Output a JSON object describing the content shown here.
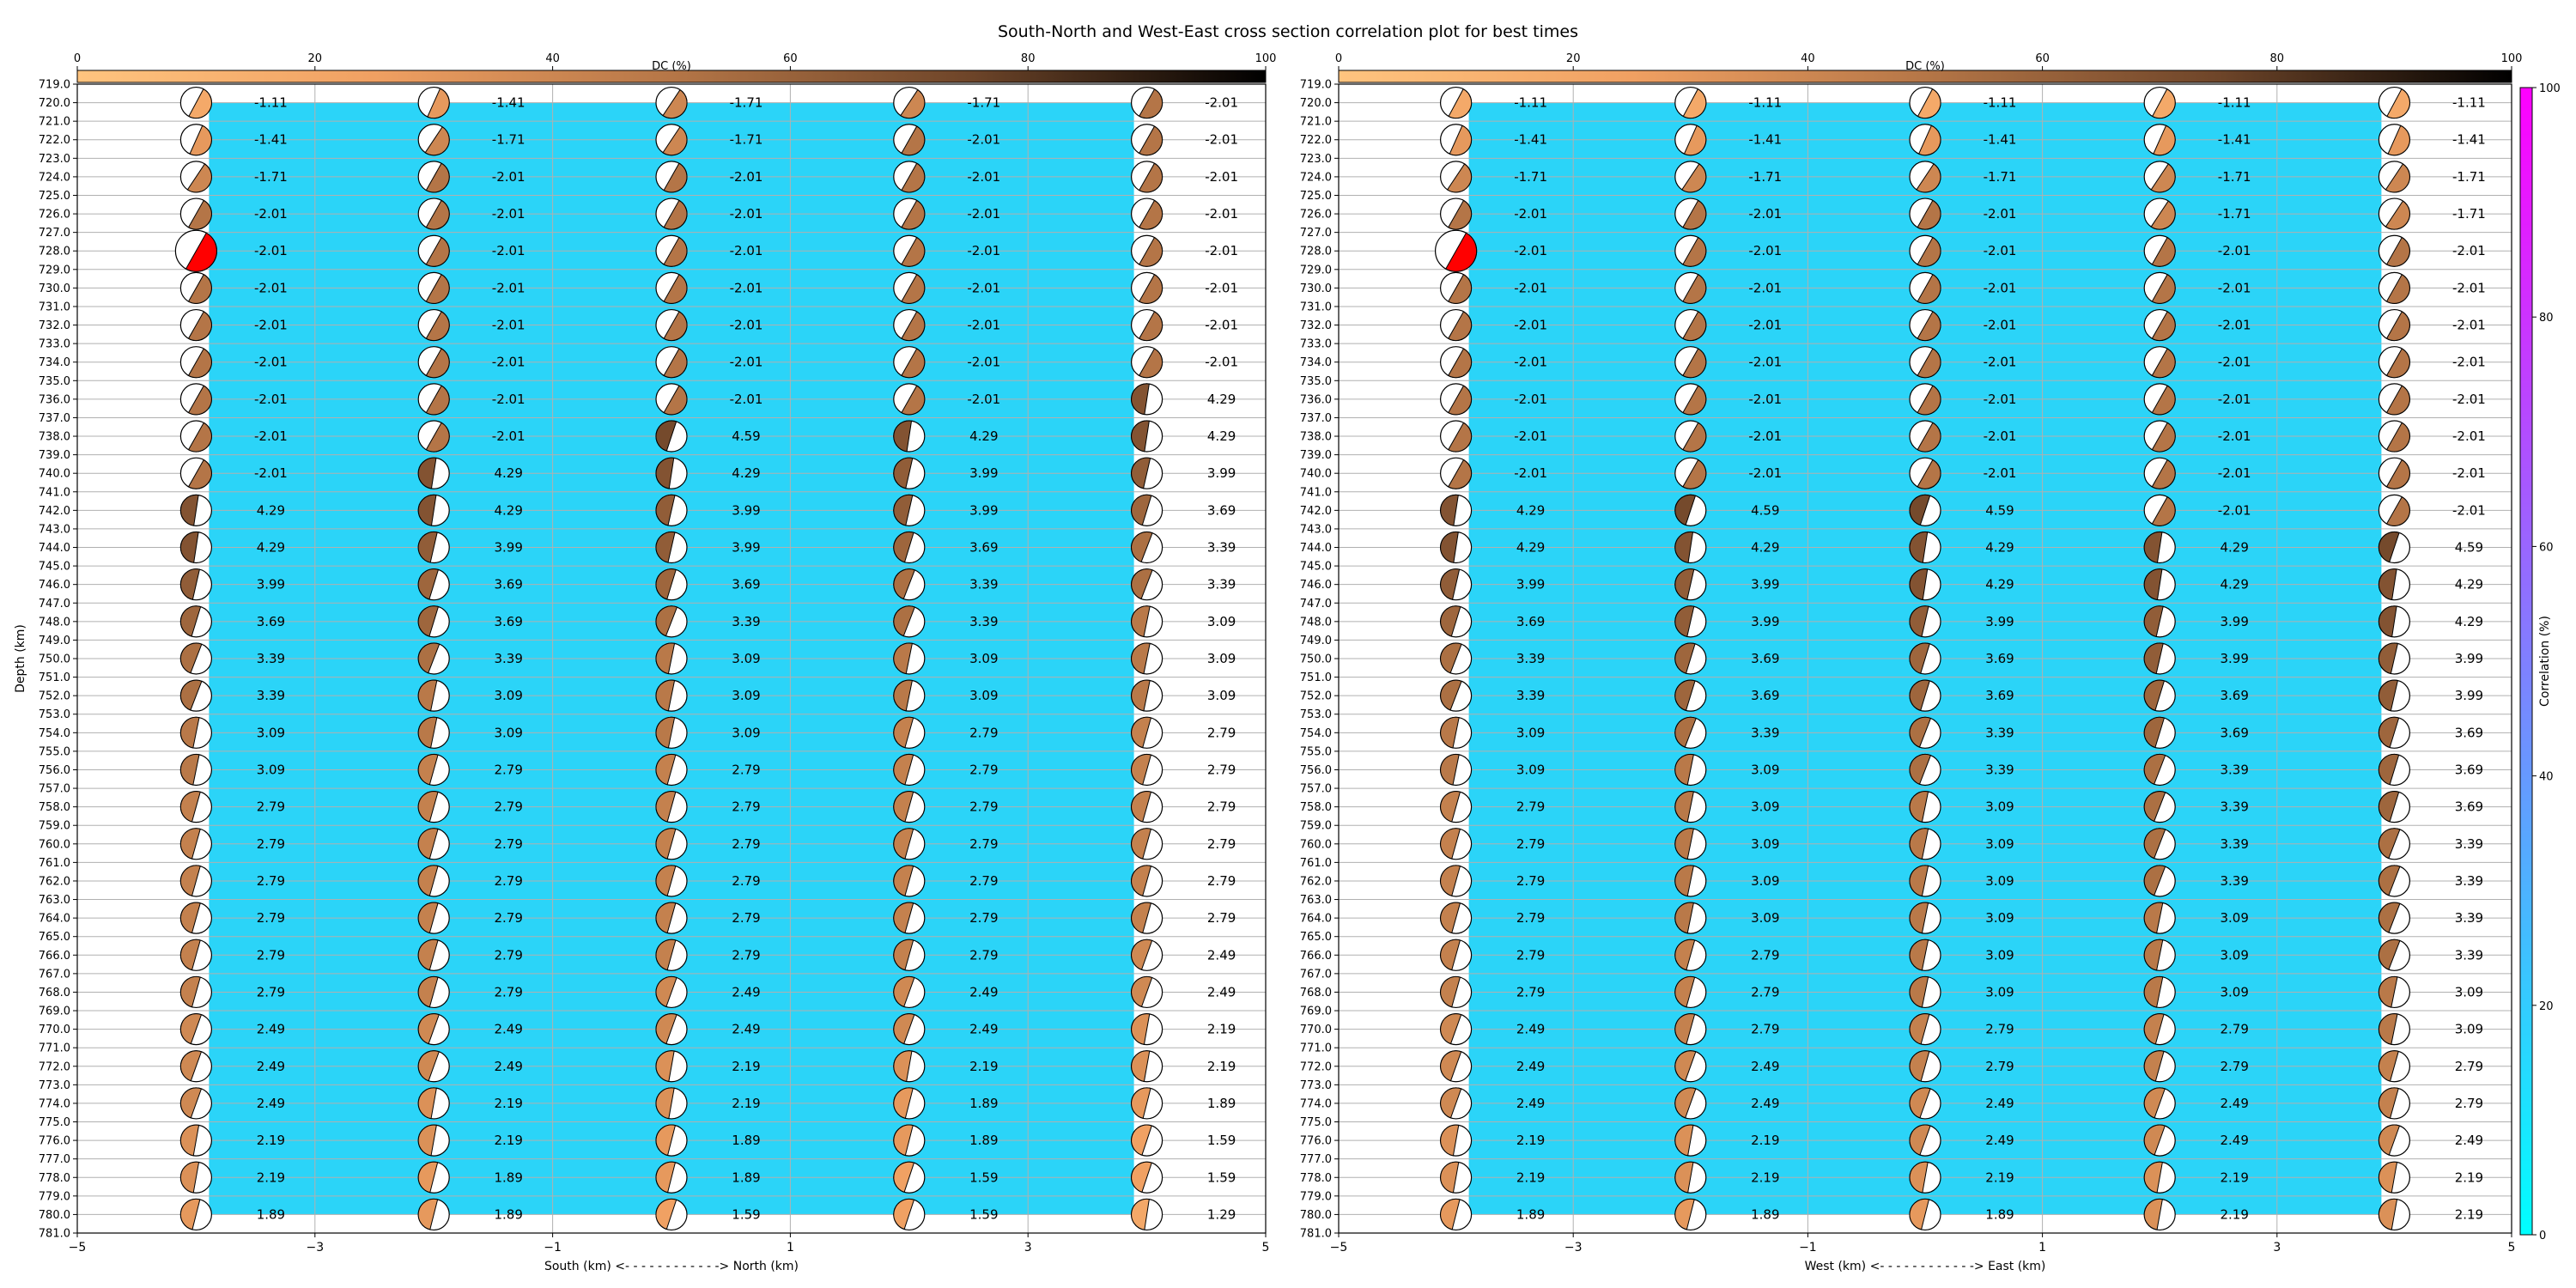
{
  "figure": {
    "title": "South-North and West-East cross section correlation plot for best times",
    "dc_label": "DC (%)",
    "dc_ticks": [
      "0",
      "20",
      "40",
      "60",
      "80",
      "100"
    ],
    "ylabel": "Depth (km)",
    "corr_label": "Correlation (%)",
    "corr_ticks": [
      "0",
      "20",
      "40",
      "60",
      "80",
      "100"
    ],
    "highlight_color": "#ff0000",
    "field_color": "#2bd4f8"
  },
  "chart_data": [
    {
      "type": "scatter",
      "title": "South-North and West-East cross section correlation plot for best times",
      "xlabel": "South (km) <- - - - - - - - - - - -> North (km)",
      "ylabel": "Depth (km)",
      "xlim": [
        -5,
        5
      ],
      "ylim": [
        781,
        719
      ],
      "x_ticks": [
        "−5",
        "−3",
        "−1",
        "1",
        "3",
        "5"
      ],
      "grid": true,
      "x": [
        -4,
        -2,
        0,
        2,
        4
      ],
      "depths": [
        720,
        722,
        724,
        726,
        728,
        730,
        732,
        734,
        736,
        738,
        740,
        742,
        744,
        746,
        748,
        750,
        752,
        754,
        756,
        758,
        760,
        762,
        764,
        766,
        768,
        770,
        772,
        774,
        776,
        778,
        780
      ],
      "values": [
        [
          "-1.11",
          "-1.41",
          "-1.71",
          "-1.71",
          "-2.01"
        ],
        [
          "-1.41",
          "-1.71",
          "-1.71",
          "-2.01",
          "-2.01"
        ],
        [
          "-1.71",
          "-2.01",
          "-2.01",
          "-2.01",
          "-2.01"
        ],
        [
          "-2.01",
          "-2.01",
          "-2.01",
          "-2.01",
          "-2.01"
        ],
        [
          "-2.01",
          "-2.01",
          "-2.01",
          "-2.01",
          "-2.01"
        ],
        [
          "-2.01",
          "-2.01",
          "-2.01",
          "-2.01",
          "-2.01"
        ],
        [
          "-2.01",
          "-2.01",
          "-2.01",
          "-2.01",
          "-2.01"
        ],
        [
          "-2.01",
          "-2.01",
          "-2.01",
          "-2.01",
          "-2.01"
        ],
        [
          "-2.01",
          "-2.01",
          "-2.01",
          "-2.01",
          "4.29"
        ],
        [
          "-2.01",
          "-2.01",
          "4.59",
          "4.29",
          "4.29"
        ],
        [
          "-2.01",
          "4.29",
          "4.29",
          "3.99",
          "3.99"
        ],
        [
          "4.29",
          "4.29",
          "3.99",
          "3.99",
          "3.69"
        ],
        [
          "4.29",
          "3.99",
          "3.99",
          "3.69",
          "3.39"
        ],
        [
          "3.99",
          "3.69",
          "3.69",
          "3.39",
          "3.39"
        ],
        [
          "3.69",
          "3.69",
          "3.39",
          "3.39",
          "3.09"
        ],
        [
          "3.39",
          "3.39",
          "3.09",
          "3.09",
          "3.09"
        ],
        [
          "3.39",
          "3.09",
          "3.09",
          "3.09",
          "3.09"
        ],
        [
          "3.09",
          "3.09",
          "3.09",
          "2.79",
          "2.79"
        ],
        [
          "3.09",
          "2.79",
          "2.79",
          "2.79",
          "2.79"
        ],
        [
          "2.79",
          "2.79",
          "2.79",
          "2.79",
          "2.79"
        ],
        [
          "2.79",
          "2.79",
          "2.79",
          "2.79",
          "2.79"
        ],
        [
          "2.79",
          "2.79",
          "2.79",
          "2.79",
          "2.79"
        ],
        [
          "2.79",
          "2.79",
          "2.79",
          "2.79",
          "2.79"
        ],
        [
          "2.79",
          "2.79",
          "2.79",
          "2.79",
          "2.49"
        ],
        [
          "2.79",
          "2.79",
          "2.49",
          "2.49",
          "2.49"
        ],
        [
          "2.49",
          "2.49",
          "2.49",
          "2.49",
          "2.19"
        ],
        [
          "2.49",
          "2.49",
          "2.19",
          "2.19",
          "2.19"
        ],
        [
          "2.49",
          "2.19",
          "2.19",
          "1.89",
          "1.89"
        ],
        [
          "2.19",
          "2.19",
          "1.89",
          "1.89",
          "1.59"
        ],
        [
          "2.19",
          "1.89",
          "1.89",
          "1.59",
          "1.59"
        ],
        [
          "1.89",
          "1.89",
          "1.59",
          "1.59",
          "1.29"
        ]
      ],
      "best": [
        -4,
        728
      ]
    },
    {
      "type": "scatter",
      "title": "",
      "xlabel": "West (km) <- - - - - - - - - - - -> East (km)",
      "ylabel": "",
      "xlim": [
        -5,
        5
      ],
      "ylim": [
        781,
        719
      ],
      "x_ticks": [
        "−5",
        "−3",
        "−1",
        "1",
        "3",
        "5"
      ],
      "grid": true,
      "x": [
        -4,
        -2,
        0,
        2,
        4
      ],
      "depths": [
        720,
        722,
        724,
        726,
        728,
        730,
        732,
        734,
        736,
        738,
        740,
        742,
        744,
        746,
        748,
        750,
        752,
        754,
        756,
        758,
        760,
        762,
        764,
        766,
        768,
        770,
        772,
        774,
        776,
        778,
        780
      ],
      "values": [
        [
          "-1.11",
          "-1.11",
          "-1.11",
          "-1.11",
          "-1.11"
        ],
        [
          "-1.41",
          "-1.41",
          "-1.41",
          "-1.41",
          "-1.41"
        ],
        [
          "-1.71",
          "-1.71",
          "-1.71",
          "-1.71",
          "-1.71"
        ],
        [
          "-2.01",
          "-2.01",
          "-2.01",
          "-1.71",
          "-1.71"
        ],
        [
          "-2.01",
          "-2.01",
          "-2.01",
          "-2.01",
          "-2.01"
        ],
        [
          "-2.01",
          "-2.01",
          "-2.01",
          "-2.01",
          "-2.01"
        ],
        [
          "-2.01",
          "-2.01",
          "-2.01",
          "-2.01",
          "-2.01"
        ],
        [
          "-2.01",
          "-2.01",
          "-2.01",
          "-2.01",
          "-2.01"
        ],
        [
          "-2.01",
          "-2.01",
          "-2.01",
          "-2.01",
          "-2.01"
        ],
        [
          "-2.01",
          "-2.01",
          "-2.01",
          "-2.01",
          "-2.01"
        ],
        [
          "-2.01",
          "-2.01",
          "-2.01",
          "-2.01",
          "-2.01"
        ],
        [
          "4.29",
          "4.59",
          "4.59",
          "-2.01",
          "-2.01"
        ],
        [
          "4.29",
          "4.29",
          "4.29",
          "4.29",
          "4.59"
        ],
        [
          "3.99",
          "3.99",
          "4.29",
          "4.29",
          "4.29"
        ],
        [
          "3.69",
          "3.99",
          "3.99",
          "3.99",
          "4.29"
        ],
        [
          "3.39",
          "3.69",
          "3.69",
          "3.99",
          "3.99"
        ],
        [
          "3.39",
          "3.69",
          "3.69",
          "3.69",
          "3.99"
        ],
        [
          "3.09",
          "3.39",
          "3.39",
          "3.69",
          "3.69"
        ],
        [
          "3.09",
          "3.09",
          "3.39",
          "3.39",
          "3.69"
        ],
        [
          "2.79",
          "3.09",
          "3.09",
          "3.39",
          "3.69"
        ],
        [
          "2.79",
          "3.09",
          "3.09",
          "3.39",
          "3.39"
        ],
        [
          "2.79",
          "3.09",
          "3.09",
          "3.39",
          "3.39"
        ],
        [
          "2.79",
          "3.09",
          "3.09",
          "3.09",
          "3.39"
        ],
        [
          "2.79",
          "2.79",
          "3.09",
          "3.09",
          "3.39"
        ],
        [
          "2.79",
          "2.79",
          "3.09",
          "3.09",
          "3.09"
        ],
        [
          "2.49",
          "2.79",
          "2.79",
          "2.79",
          "3.09"
        ],
        [
          "2.49",
          "2.49",
          "2.79",
          "2.79",
          "2.79"
        ],
        [
          "2.49",
          "2.49",
          "2.49",
          "2.49",
          "2.79"
        ],
        [
          "2.19",
          "2.19",
          "2.49",
          "2.49",
          "2.49"
        ],
        [
          "2.19",
          "2.19",
          "2.19",
          "2.19",
          "2.19"
        ],
        [
          "1.89",
          "1.89",
          "1.89",
          "2.19",
          "2.19"
        ]
      ],
      "best": [
        -4,
        728
      ]
    }
  ]
}
